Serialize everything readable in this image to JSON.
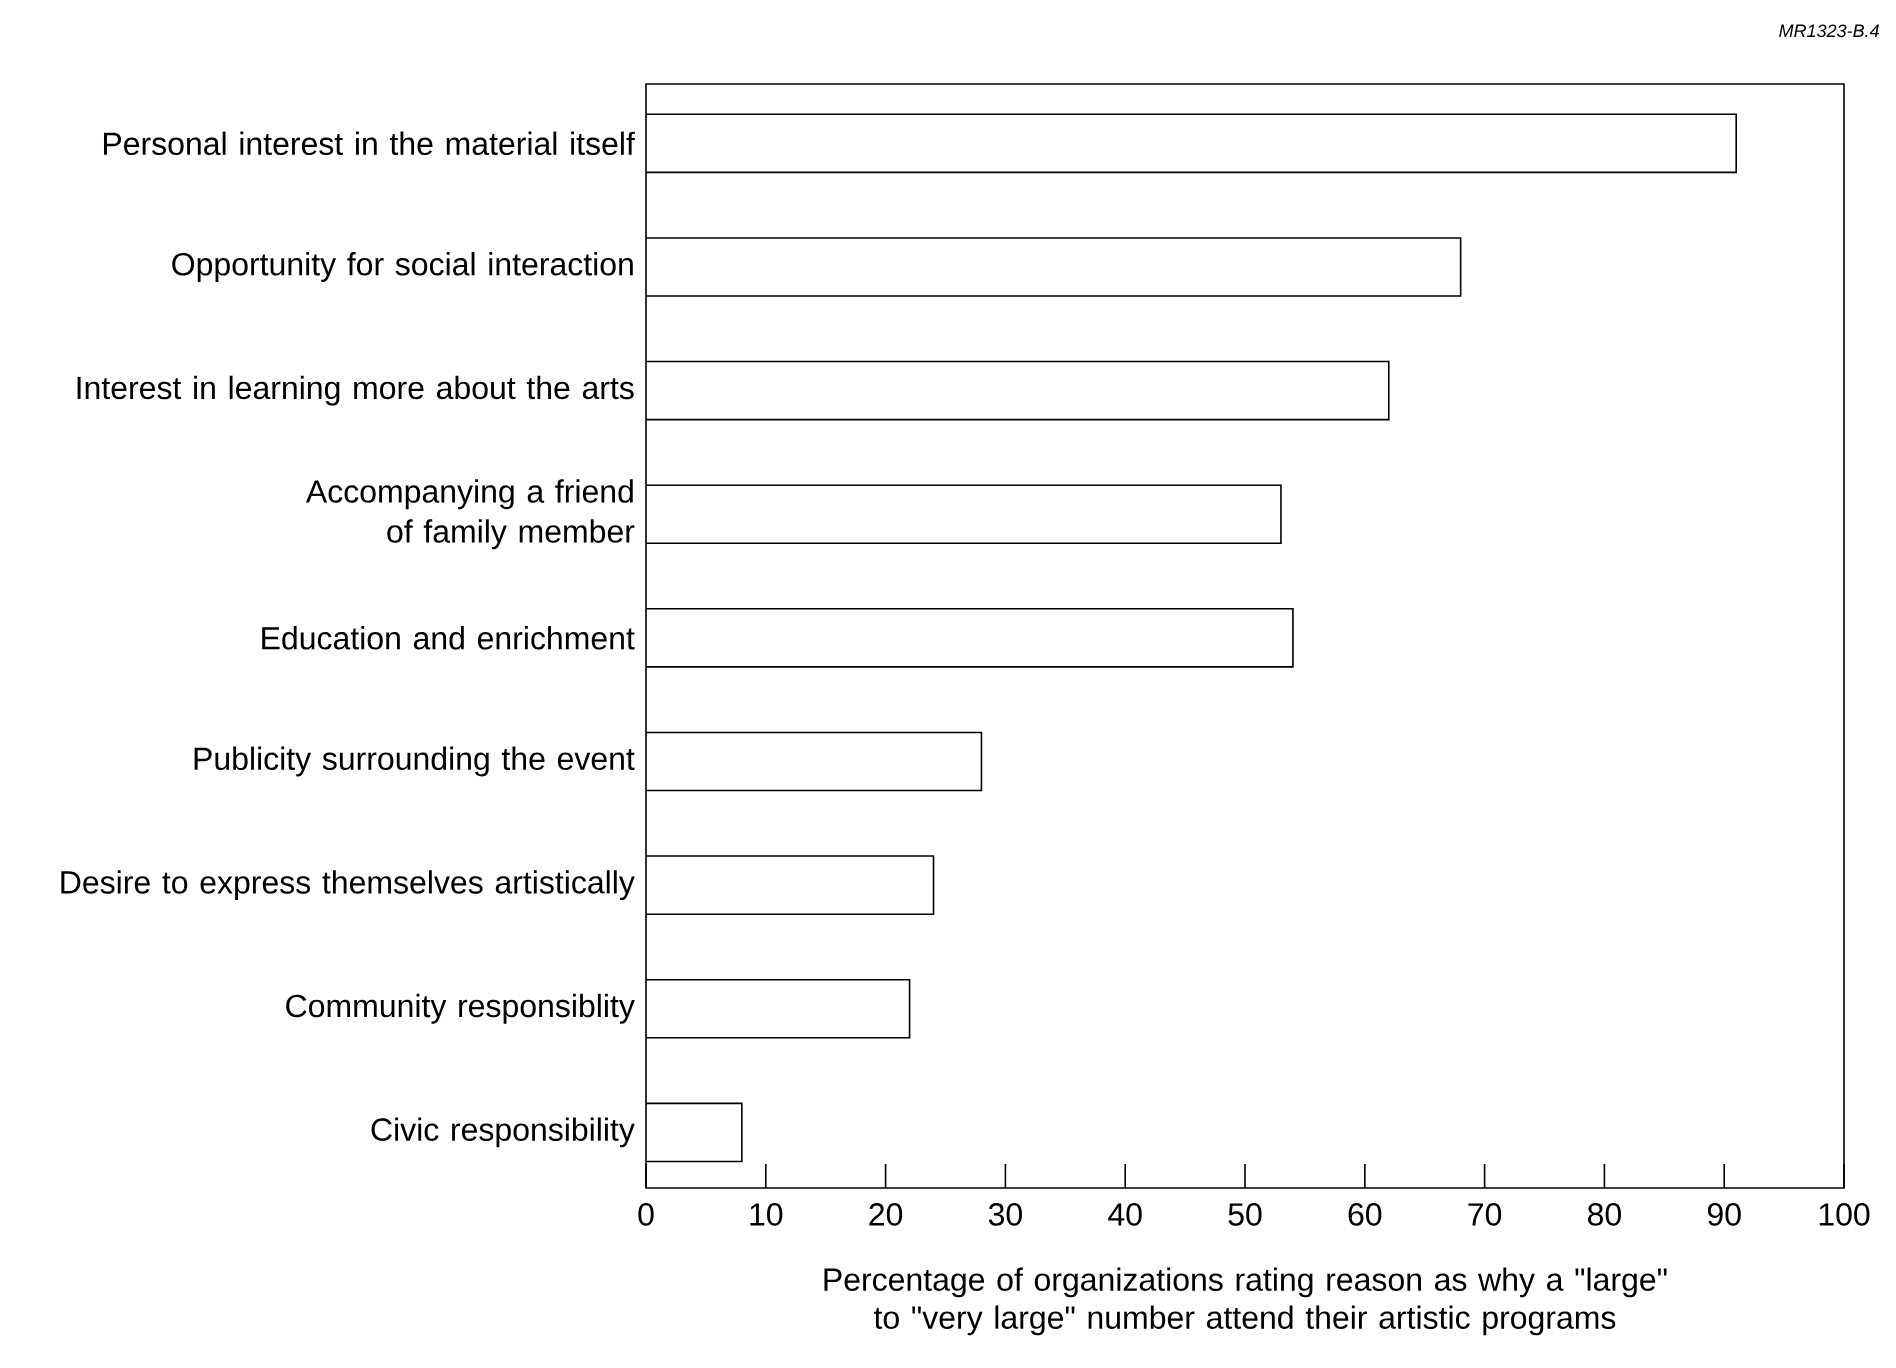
{
  "chart_data": {
    "type": "bar",
    "orientation": "horizontal",
    "categories": [
      "Personal interest in the material itself",
      "Opportunity for social interaction",
      "Interest in learning more about the arts",
      "Accompanying a friend of family member",
      "Education and enrichment",
      "Publicity surrounding the event",
      "Desire to express themselves artistically",
      "Community responsiblity",
      "Civic responsibility"
    ],
    "values": [
      91,
      68,
      62,
      53,
      54,
      28,
      24,
      22,
      8
    ],
    "color": "#ffffff",
    "xlabel": "Percentage of organizations rating reason as why a \"large\" to \"very large\" number attend their artistic programs",
    "xlim": [
      0,
      100
    ],
    "xticks": [
      0,
      10,
      20,
      30,
      40,
      50,
      60,
      70,
      80,
      90,
      100
    ],
    "annotations": [
      "*MR1323-B.4*"
    ]
  }
}
